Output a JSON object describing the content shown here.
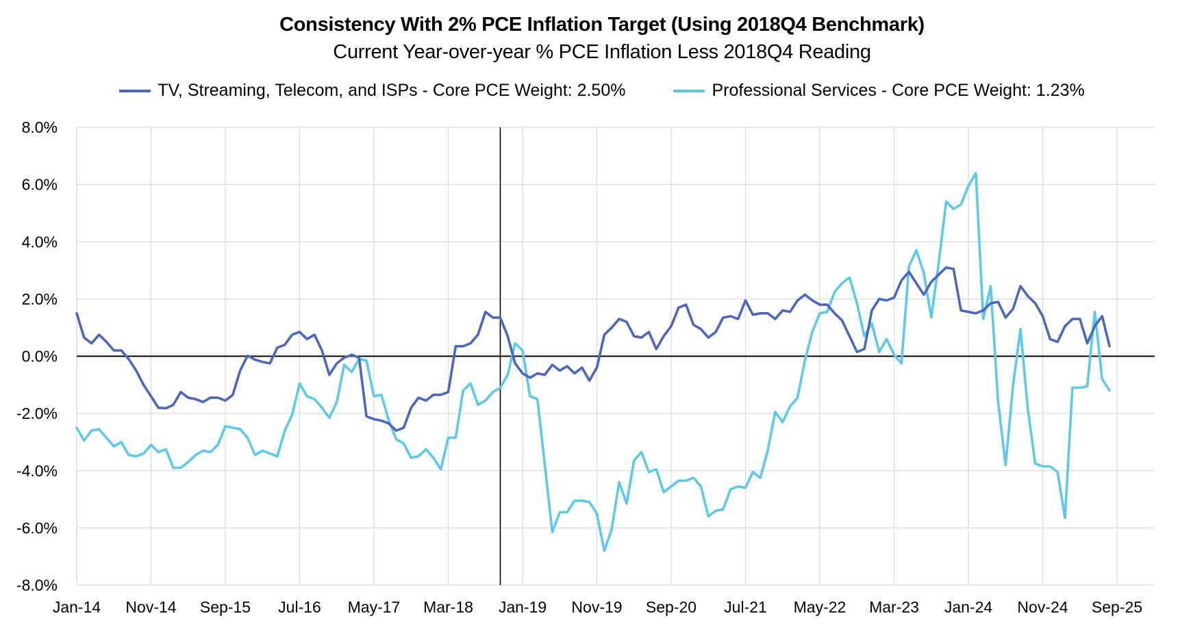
{
  "chart_data": {
    "type": "line",
    "title": "Consistency With 2% PCE Inflation Target (Using 2018Q4 Benchmark)",
    "subtitle": "Current Year-over-year % PCE Inflation Less 2018Q4 Reading",
    "xlabel": "",
    "ylabel": "",
    "ylim": [
      -8,
      8
    ],
    "yticks": [
      -8,
      -6,
      -4,
      -2,
      0,
      2,
      4,
      6,
      8
    ],
    "ytick_labels": [
      "-8.0%",
      "-6.0%",
      "-4.0%",
      "-2.0%",
      "0.0%",
      "2.0%",
      "4.0%",
      "6.0%",
      "8.0%"
    ],
    "x_start": "Jan-14",
    "x_end": "Dec-25",
    "xtick_labels": [
      "Jan-14",
      "Nov-14",
      "Sep-15",
      "Jul-16",
      "May-17",
      "Mar-18",
      "Jan-19",
      "Nov-19",
      "Sep-20",
      "Jul-21",
      "May-22",
      "Mar-23",
      "Jan-24",
      "Nov-24",
      "Sep-25"
    ],
    "xtick_spacing_months": 10,
    "benchmark_line_month_index": 57,
    "legend_position": "top",
    "grid": true,
    "series": [
      {
        "name": "TV, Streaming, Telecom, and ISPs - Core PCE Weight: 2.50%",
        "color": "#4a66c5",
        "values": [
          1.5,
          0.65,
          0.45,
          0.75,
          0.5,
          0.2,
          0.2,
          -0.1,
          -0.5,
          -1.0,
          -1.4,
          -1.8,
          -1.82,
          -1.7,
          -1.25,
          -1.45,
          -1.5,
          -1.6,
          -1.45,
          -1.45,
          -1.55,
          -1.35,
          -0.5,
          0.02,
          -0.12,
          -0.2,
          -0.25,
          0.3,
          0.4,
          0.75,
          0.85,
          0.6,
          0.75,
          0.2,
          -0.65,
          -0.25,
          -0.05,
          0.05,
          -0.05,
          -2.1,
          -2.2,
          -2.25,
          -2.35,
          -2.6,
          -2.5,
          -1.8,
          -1.45,
          -1.55,
          -1.35,
          -1.35,
          -1.25,
          0.35,
          0.35,
          0.45,
          0.75,
          1.55,
          1.35,
          1.35,
          0.7,
          -0.25,
          -0.6,
          -0.75,
          -0.6,
          -0.65,
          -0.3,
          -0.5,
          -0.35,
          -0.6,
          -0.4,
          -0.85,
          -0.4,
          0.75,
          1.0,
          1.3,
          1.2,
          0.7,
          0.65,
          0.85,
          0.25,
          0.7,
          1.05,
          1.7,
          1.8,
          1.1,
          0.95,
          0.65,
          0.85,
          1.35,
          1.4,
          1.3,
          1.95,
          1.45,
          1.5,
          1.5,
          1.3,
          1.6,
          1.55,
          1.95,
          2.15,
          1.95,
          1.8,
          1.8,
          1.5,
          1.25,
          0.7,
          0.15,
          0.25,
          1.6,
          2.0,
          1.95,
          2.05,
          2.65,
          2.95,
          2.55,
          2.15,
          2.6,
          2.85,
          3.1,
          3.05,
          1.6,
          1.55,
          1.5,
          1.6,
          1.85,
          1.9,
          1.35,
          1.65,
          2.45,
          2.1,
          1.85,
          1.4,
          0.6,
          0.5,
          1.05,
          1.3,
          1.3,
          0.45,
          1.05,
          1.4,
          0.35
        ]
      },
      {
        "name": "Professional Services - Core PCE Weight: 1.23%",
        "color": "#5bc8ee",
        "values": [
          -2.5,
          -2.95,
          -2.6,
          -2.55,
          -2.85,
          -3.15,
          -3.0,
          -3.45,
          -3.5,
          -3.4,
          -3.1,
          -3.35,
          -3.25,
          -3.9,
          -3.9,
          -3.7,
          -3.45,
          -3.3,
          -3.35,
          -3.1,
          -2.45,
          -2.5,
          -2.55,
          -2.85,
          -3.45,
          -3.3,
          -3.4,
          -3.5,
          -2.6,
          -2.05,
          -0.95,
          -1.4,
          -1.5,
          -1.8,
          -2.15,
          -1.6,
          -0.3,
          -0.55,
          -0.1,
          -0.15,
          -1.4,
          -1.35,
          -2.25,
          -2.9,
          -3.05,
          -3.55,
          -3.5,
          -3.25,
          -3.55,
          -3.95,
          -2.85,
          -2.85,
          -1.2,
          -0.95,
          -1.7,
          -1.55,
          -1.25,
          -1.1,
          -0.65,
          0.45,
          0.2,
          -1.4,
          -1.5,
          -3.8,
          -6.15,
          -5.45,
          -5.45,
          -5.05,
          -5.05,
          -5.1,
          -5.5,
          -6.8,
          -6.05,
          -4.4,
          -5.15,
          -3.65,
          -3.35,
          -4.05,
          -3.95,
          -4.75,
          -4.55,
          -4.35,
          -4.35,
          -4.25,
          -4.55,
          -5.6,
          -5.4,
          -5.35,
          -4.65,
          -4.55,
          -4.6,
          -4.05,
          -4.25,
          -3.3,
          -1.95,
          -2.3,
          -1.75,
          -1.45,
          -0.15,
          0.85,
          1.5,
          1.55,
          2.25,
          2.55,
          2.75,
          1.85,
          0.7,
          1.15,
          0.15,
          0.6,
          0.05,
          -0.25,
          3.15,
          3.7,
          2.9,
          1.35,
          3.25,
          5.4,
          5.15,
          5.3,
          5.95,
          6.4,
          1.3,
          2.45,
          -1.6,
          -3.8,
          -1.05,
          0.95,
          -1.85,
          -3.75,
          -3.85,
          -3.85,
          -4.05,
          -5.65,
          -1.1,
          -1.1,
          -1.05,
          1.55,
          -0.8,
          -1.2
        ]
      }
    ]
  }
}
